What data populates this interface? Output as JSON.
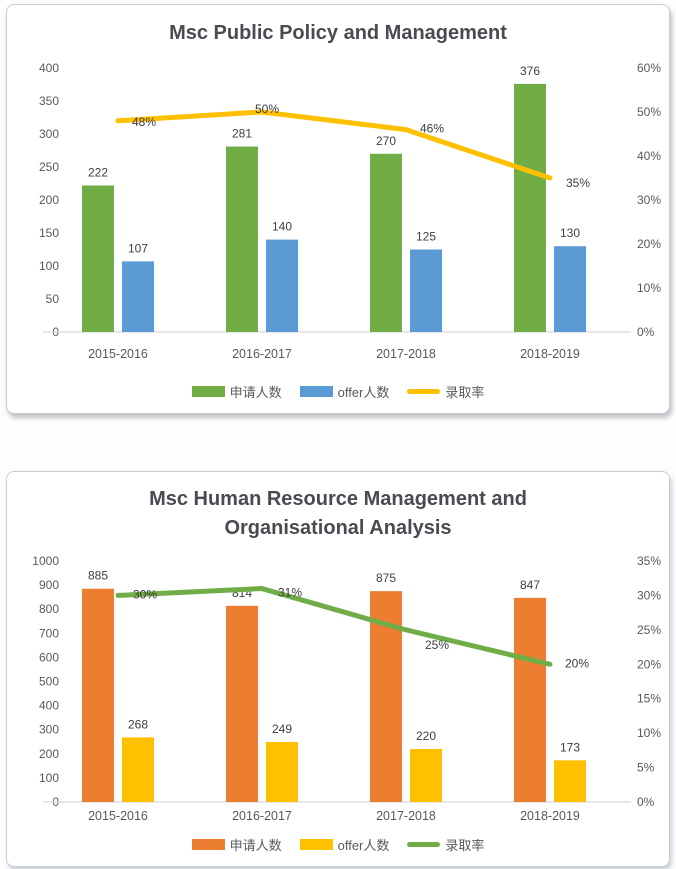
{
  "chart_data": [
    {
      "type": "bar-line-combo",
      "title": "Msc Public Policy and Management",
      "title_lines": [
        "Msc Public Policy and Management"
      ],
      "categories": [
        "2015-2016",
        "2016-2017",
        "2017-2018",
        "2018-2019"
      ],
      "series": [
        {
          "name": "申请人数",
          "chart_type": "bar",
          "color": "#70AD47",
          "values": [
            222,
            281,
            270,
            376
          ],
          "data_labels": [
            "222",
            "281",
            "270",
            "376"
          ]
        },
        {
          "name": "offer人数",
          "chart_type": "bar",
          "color": "#5B9BD5",
          "values": [
            107,
            140,
            125,
            130
          ],
          "data_labels": [
            "107",
            "140",
            "125",
            "130"
          ]
        },
        {
          "name": "录取率",
          "chart_type": "line",
          "axis": "right",
          "color": "#FFC000",
          "values": [
            0.48,
            0.5,
            0.46,
            0.35
          ],
          "data_labels": [
            "48%",
            "50%",
            "46%",
            "35%"
          ]
        }
      ],
      "left_axis": {
        "min": 0,
        "max": 400,
        "step": 50,
        "tick_labels": [
          "400",
          "350",
          "300",
          "250",
          "200",
          "150",
          "100",
          "50",
          "0"
        ]
      },
      "right_axis": {
        "min": 0,
        "max": 0.6,
        "step": 0.1,
        "format": "percent",
        "tick_labels": [
          "60%",
          "50%",
          "40%",
          "30%",
          "20%",
          "10%",
          "0%"
        ]
      },
      "legend_position": "bottom",
      "grid": false
    },
    {
      "type": "bar-line-combo",
      "title": "Msc Human Resource Management and Organisational Analysis",
      "title_lines": [
        "Msc Human Resource Management and",
        "Organisational Analysis"
      ],
      "categories": [
        "2015-2016",
        "2016-2017",
        "2017-2018",
        "2018-2019"
      ],
      "series": [
        {
          "name": "申请人数",
          "chart_type": "bar",
          "color": "#ED7D31",
          "values": [
            885,
            814,
            875,
            847
          ],
          "data_labels": [
            "885",
            "814",
            "875",
            "847"
          ]
        },
        {
          "name": "offer人数",
          "chart_type": "bar",
          "color": "#FFC000",
          "values": [
            268,
            249,
            220,
            173
          ],
          "data_labels": [
            "268",
            "249",
            "220",
            "173"
          ]
        },
        {
          "name": "录取率",
          "chart_type": "line",
          "axis": "right",
          "color": "#70AD47",
          "values": [
            0.3,
            0.31,
            0.25,
            0.2
          ],
          "data_labels": [
            "30%",
            "31%",
            "25%",
            "20%"
          ]
        }
      ],
      "left_axis": {
        "min": 0,
        "max": 1000,
        "step": 100,
        "tick_labels": [
          "1000",
          "900",
          "800",
          "700",
          "600",
          "500",
          "400",
          "300",
          "200",
          "100",
          "0"
        ]
      },
      "right_axis": {
        "min": 0,
        "max": 0.35,
        "step": 0.05,
        "format": "percent",
        "tick_labels": [
          "35%",
          "30%",
          "25%",
          "20%",
          "15%",
          "10%",
          "5%",
          "0%"
        ]
      },
      "legend_position": "bottom",
      "grid": false
    }
  ],
  "colors": {
    "axis_text": "#595959",
    "data_label_text": "#404040",
    "title_text": "#4a4a52",
    "axis_line": "#d9d9d9"
  }
}
